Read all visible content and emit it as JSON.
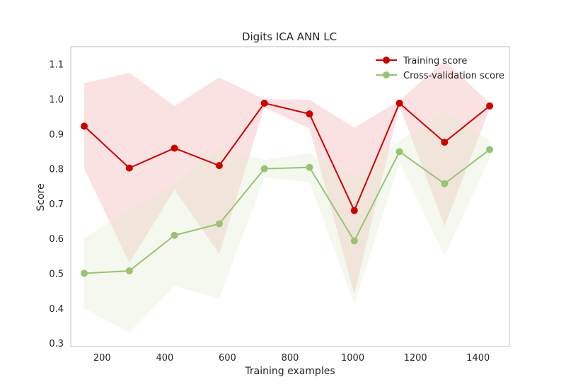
{
  "chart_data": {
    "type": "line",
    "title": "Digits ICA ANN LC",
    "xlabel": "Training examples",
    "ylabel": "Score",
    "xlim": [
      100,
      1500
    ],
    "ylim": [
      0.29,
      1.15
    ],
    "xticks": [
      200,
      400,
      600,
      800,
      1000,
      1200,
      1400
    ],
    "yticks": [
      0.3,
      0.4,
      0.5,
      0.6,
      0.7,
      0.8,
      0.9,
      1.0,
      1.1
    ],
    "grid": false,
    "legend_position": "top-right",
    "x": [
      143,
      287,
      431,
      574,
      718,
      862,
      1005,
      1149,
      1293,
      1437
    ],
    "series": [
      {
        "name": "Training score",
        "color": "#cc0000",
        "band_color": "#f7c6c6",
        "values": [
          0.922,
          0.802,
          0.859,
          0.809,
          0.988,
          0.957,
          0.68,
          0.988,
          0.876,
          0.98
        ],
        "upper": [
          1.045,
          1.075,
          0.98,
          1.062,
          0.999,
          0.998,
          0.918,
          0.995,
          1.11,
          0.988
        ],
        "lower": [
          0.8,
          0.53,
          0.74,
          0.556,
          0.976,
          0.915,
          0.44,
          0.98,
          0.636,
          0.972
        ]
      },
      {
        "name": "Cross-validation score",
        "color": "#99c374",
        "band_color": "#dfebcf",
        "values": [
          0.5,
          0.507,
          0.609,
          0.642,
          0.8,
          0.804,
          0.593,
          0.849,
          0.757,
          0.855
        ],
        "upper": [
          0.6,
          0.685,
          0.755,
          0.858,
          0.825,
          0.845,
          0.775,
          0.88,
          0.965,
          0.88
        ],
        "lower": [
          0.4,
          0.33,
          0.463,
          0.428,
          0.775,
          0.762,
          0.412,
          0.818,
          0.55,
          0.83
        ]
      }
    ]
  }
}
